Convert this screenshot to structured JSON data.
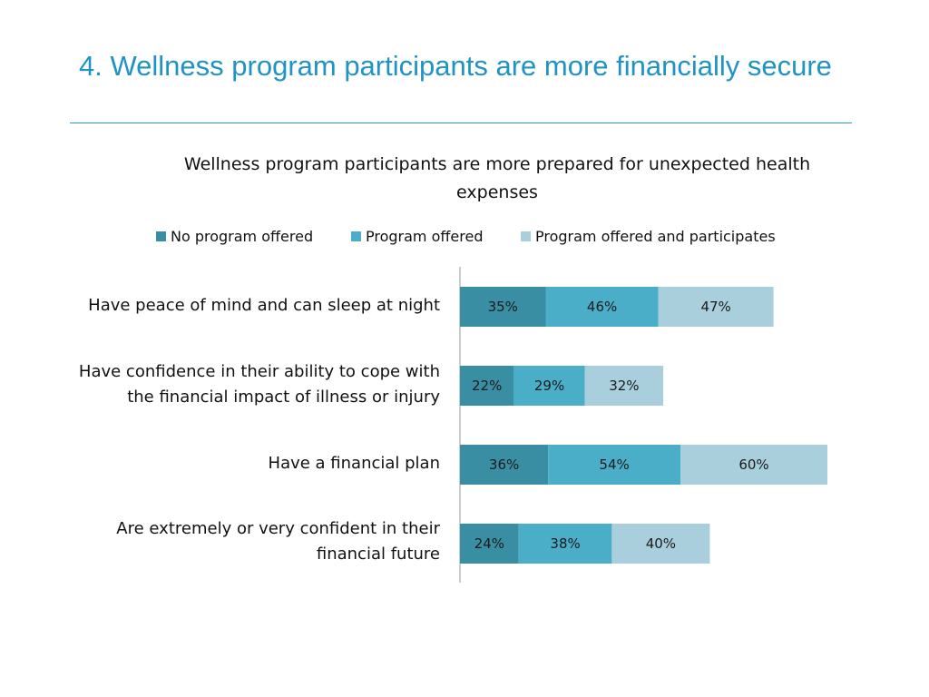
{
  "slide": {
    "title": "4. Wellness program participants are more financially secure"
  },
  "colors": {
    "title": "#1f93c4",
    "rule": "#2a9bc8",
    "axis": "#9a9a9a"
  },
  "chart_data": {
    "type": "bar",
    "orientation": "horizontal",
    "stacked": true,
    "title": "Wellness program participants are more prepared for unexpected health expenses",
    "legend_position": "top",
    "grid": false,
    "categories": [
      [
        "Have peace of mind and can sleep at night"
      ],
      [
        "Have confidence in their ability to cope with",
        "the financial impact of illness or injury"
      ],
      [
        "Have a financial plan"
      ],
      [
        "Are extremely or very confident in their",
        "financial future"
      ]
    ],
    "series": [
      {
        "name": "No program offered",
        "color": "#3a8ea3",
        "values": [
          35,
          22,
          36,
          24
        ],
        "labels": [
          "35%",
          "22%",
          "36%",
          "24%"
        ]
      },
      {
        "name": "Program offered",
        "color": "#4aaec9",
        "values": [
          46,
          29,
          54,
          38
        ],
        "labels": [
          "46%",
          "29%",
          "54%",
          "38%"
        ]
      },
      {
        "name": "Program offered and participates",
        "color": "#a9cfdd",
        "values": [
          47,
          32,
          60,
          40
        ],
        "labels": [
          "47%",
          "32%",
          "60%",
          "40%"
        ]
      }
    ]
  }
}
